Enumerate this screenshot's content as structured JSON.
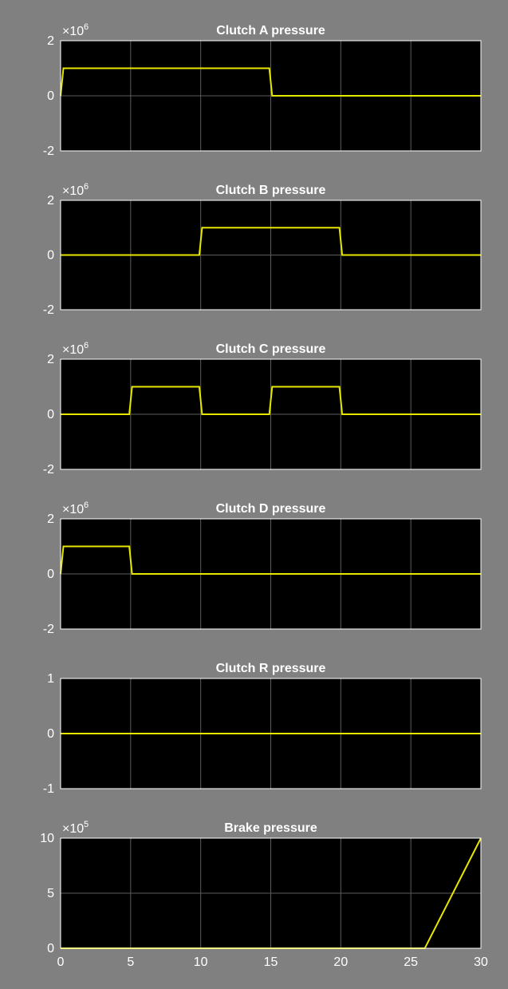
{
  "chart_data": [
    {
      "type": "line",
      "title": "Clutch A pressure",
      "ylim": [
        -2,
        2
      ],
      "yticks": [
        "2",
        "0",
        "-2"
      ],
      "y_exponent": {
        "base": "×10",
        "power": "6"
      },
      "xlim": [
        0,
        30
      ],
      "grid": true,
      "color": "#e6e600",
      "series": [
        {
          "x": [
            0,
            0.2,
            14.9,
            15.1,
            30
          ],
          "y": [
            0,
            1,
            1,
            0,
            0
          ]
        }
      ]
    },
    {
      "type": "line",
      "title": "Clutch B pressure",
      "ylim": [
        -2,
        2
      ],
      "yticks": [
        "2",
        "0",
        "-2"
      ],
      "y_exponent": {
        "base": "×10",
        "power": "6"
      },
      "xlim": [
        0,
        30
      ],
      "grid": true,
      "color": "#e6e600",
      "series": [
        {
          "x": [
            0,
            9.9,
            10.1,
            19.9,
            20.1,
            30
          ],
          "y": [
            0,
            0,
            1,
            1,
            0,
            0
          ]
        }
      ]
    },
    {
      "type": "line",
      "title": "Clutch C pressure",
      "ylim": [
        -2,
        2
      ],
      "yticks": [
        "2",
        "0",
        "-2"
      ],
      "y_exponent": {
        "base": "×10",
        "power": "6"
      },
      "xlim": [
        0,
        30
      ],
      "grid": true,
      "color": "#e6e600",
      "series": [
        {
          "x": [
            0,
            4.9,
            5.1,
            9.9,
            10.1,
            14.9,
            15.1,
            19.9,
            20.1,
            30
          ],
          "y": [
            0,
            0,
            1,
            1,
            0,
            0,
            1,
            1,
            0,
            0
          ]
        }
      ]
    },
    {
      "type": "line",
      "title": "Clutch D pressure",
      "ylim": [
        -2,
        2
      ],
      "yticks": [
        "2",
        "0",
        "-2"
      ],
      "y_exponent": {
        "base": "×10",
        "power": "6"
      },
      "xlim": [
        0,
        30
      ],
      "grid": true,
      "color": "#e6e600",
      "series": [
        {
          "x": [
            0,
            0.2,
            4.9,
            5.1,
            30
          ],
          "y": [
            0,
            1,
            1,
            0,
            0
          ]
        }
      ]
    },
    {
      "type": "line",
      "title": "Clutch R pressure",
      "ylim": [
        -1,
        1
      ],
      "yticks": [
        "1",
        "0",
        "-1"
      ],
      "y_exponent": null,
      "xlim": [
        0,
        30
      ],
      "grid": true,
      "color": "#e6e600",
      "series": [
        {
          "x": [
            0,
            30
          ],
          "y": [
            0,
            0
          ]
        }
      ]
    },
    {
      "type": "line",
      "title": "Brake pressure",
      "ylim": [
        0,
        10
      ],
      "yticks": [
        "10",
        "5",
        "0"
      ],
      "y_exponent": {
        "base": "×10",
        "power": "5"
      },
      "xlim": [
        0,
        30
      ],
      "xticks": [
        "0",
        "5",
        "10",
        "15",
        "20",
        "25",
        "30"
      ],
      "grid": true,
      "color": "#e6e600",
      "series": [
        {
          "x": [
            0,
            26,
            30
          ],
          "y": [
            0,
            0,
            10
          ]
        }
      ]
    }
  ]
}
